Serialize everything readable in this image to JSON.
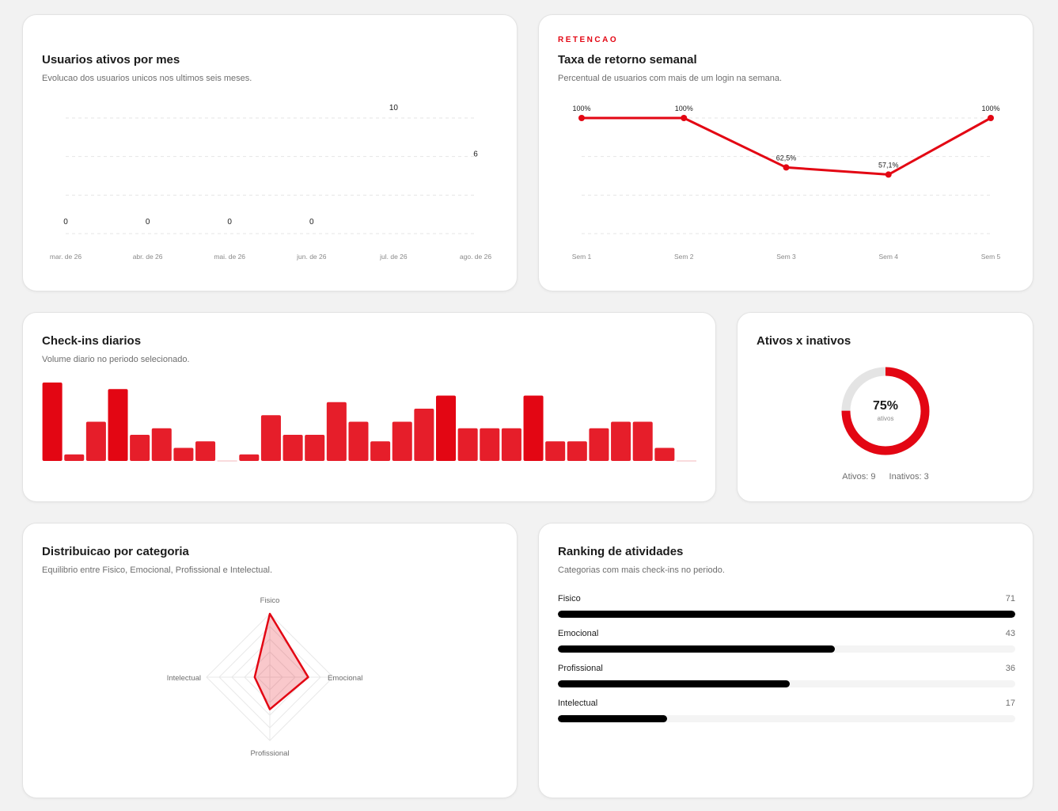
{
  "colors": {
    "accent": "#e30613",
    "bar": "#e30613",
    "rank_fill": "#000000"
  },
  "active_users": {
    "title": "Usuarios ativos por mes",
    "subtitle": "Evolucao dos usuarios unicos nos ultimos seis meses.",
    "chart_data": {
      "type": "bar",
      "categories": [
        "mar. de 26",
        "abr. de 26",
        "mai. de 26",
        "jun. de 26",
        "jul. de 26",
        "ago. de 26"
      ],
      "values": [
        0,
        0,
        0,
        0,
        10,
        6
      ],
      "ylim": [
        0,
        10
      ],
      "grid": true
    }
  },
  "retention": {
    "kicker": "RETENCAO",
    "title": "Taxa de retorno semanal",
    "subtitle": "Percentual de usuarios com mais de um login na semana.",
    "chart_data": {
      "type": "line",
      "categories": [
        "Sem 1",
        "Sem 2",
        "Sem 3",
        "Sem 4",
        "Sem 5"
      ],
      "values": [
        100,
        100,
        62.5,
        57.1,
        100
      ],
      "value_labels": [
        "100%",
        "100%",
        "62,5%",
        "57,1%",
        "100%"
      ],
      "ylim": [
        0,
        100
      ],
      "grid": true
    }
  },
  "checkins": {
    "title": "Check-ins diarios",
    "subtitle": "Volume diario no periodo selecionado.",
    "chart_data": {
      "type": "bar",
      "values": [
        12,
        1,
        6,
        11,
        4,
        5,
        2,
        3,
        0,
        1,
        7,
        4,
        4,
        9,
        6,
        3,
        6,
        8,
        10,
        5,
        5,
        5,
        10,
        3,
        3,
        5,
        6,
        6,
        2,
        0
      ],
      "ylim": [
        0,
        12
      ]
    }
  },
  "active_inactive": {
    "title": "Ativos x inativos",
    "percent": "75%",
    "percent_label": "ativos",
    "active_label": "Ativos: 9",
    "inactive_label": "Inativos: 3",
    "chart_data": {
      "type": "pie",
      "labels": [
        "Ativos",
        "Inativos"
      ],
      "values": [
        9,
        3
      ]
    }
  },
  "category_distribution": {
    "title": "Distribuicao por categoria",
    "subtitle": "Equilibrio entre Fisico, Emocional, Profissional e Intelectual.",
    "chart_data": {
      "type": "radar",
      "categories": [
        "Fisico",
        "Emocional",
        "Profissional",
        "Intelectual"
      ],
      "values": [
        71,
        43,
        36,
        17
      ],
      "max": 71
    }
  },
  "ranking": {
    "title": "Ranking de atividades",
    "subtitle": "Categorias com mais check-ins no periodo.",
    "items": [
      {
        "label": "Fisico",
        "value": 71,
        "fraction": 1.0
      },
      {
        "label": "Emocional",
        "value": 43,
        "fraction": 0.606
      },
      {
        "label": "Profissional",
        "value": 36,
        "fraction": 0.507
      },
      {
        "label": "Intelectual",
        "value": 17,
        "fraction": 0.239
      }
    ]
  }
}
